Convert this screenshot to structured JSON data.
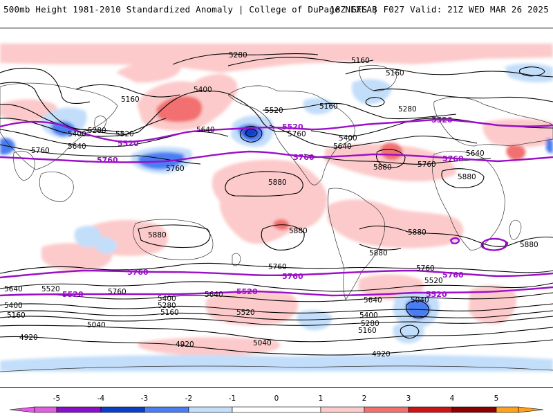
{
  "header": {
    "title": "500mb Height 1981-2010 Standardized Anomaly | College of DuPage NEXLAB",
    "run_info": "18Z GFS | F027 Valid: 21Z WED MAR 26 2025"
  },
  "colors": {
    "contour": "#000000",
    "highlight_contour": "#9a10c8",
    "anom_m5": "#e25de2",
    "anom_m4": "#8a0fc9",
    "anom_m3": "#0a3fc7",
    "anom_m2": "#4a7ef2",
    "anom_m1": "#c3defa",
    "anom_p1": "#fccaca",
    "anom_p2": "#f27070",
    "anom_p3": "#cc1414",
    "anom_p4": "#8c0000",
    "anom_p5": "#ffa21a"
  },
  "colorbar": {
    "ticks": [
      "-5",
      "-4",
      "-3",
      "-2",
      "-1",
      "0",
      "1",
      "2",
      "3",
      "4",
      "5"
    ]
  },
  "contour_labels": {
    "n_5280_a": "5280",
    "n_5160_a": "5160",
    "n_5160_b": "5160",
    "n_5400_a": "5400",
    "n_5160_c": "5160",
    "n_5520_a": "5520",
    "n_5160_d": "5160",
    "n_5280_b": "5280",
    "n_5400_b": "5400",
    "n_5280_c": "5280",
    "n_5520_b": "5520",
    "n_5640_a": "5640",
    "n_5760_a": "5760",
    "n_5640_b": "5640",
    "n_5760_b": "5760",
    "n_5760_c": "5760",
    "n_5400_c": "5400",
    "n_5640_c": "5640",
    "n_5880_a": "5880",
    "n_5760_d": "5760",
    "n_5640_d": "5640",
    "n_5880_b": "5880",
    "n_5880_c": "5880",
    "t_5880_a": "5880",
    "t_5880_b": "5880",
    "t_5880_c": "5880",
    "t_5880_d": "5880",
    "t_5880_e": "5880",
    "s_5760_a": "5760",
    "s_5760_b": "5760",
    "s_5640_a": "5640",
    "s_5520_a": "5520",
    "s_5760_c": "5760",
    "s_5400_a": "5400",
    "s_5280_a": "5280",
    "s_5160_a": "5160",
    "s_5640_b": "5640",
    "s_5520_b": "5520",
    "s_5640_c": "5640",
    "s_5520_c": "5520",
    "s_5040_a": "5040",
    "s_5400_b": "5400",
    "s_5280_b": "5280",
    "s_5160_b": "5160",
    "s_5040_b": "5040",
    "s_4920_a": "4920",
    "s_4920_b": "4920",
    "s_5040_c": "5040",
    "s_4920_c": "4920",
    "s_5400_c": "5400",
    "s_5160_c": "5160",
    "p_5520_a": "5520",
    "p_5520_b": "5520",
    "p_5520_c": "5520",
    "p_5760_a": "5760",
    "p_5760_b": "5760",
    "p_5760_c": "5760",
    "p_5760_d": "5760",
    "p_5760_e": "5760",
    "p_5760_f": "5760",
    "p_5520_d": "5520",
    "p_5520_e": "5520",
    "p_5520_f": "5520"
  }
}
